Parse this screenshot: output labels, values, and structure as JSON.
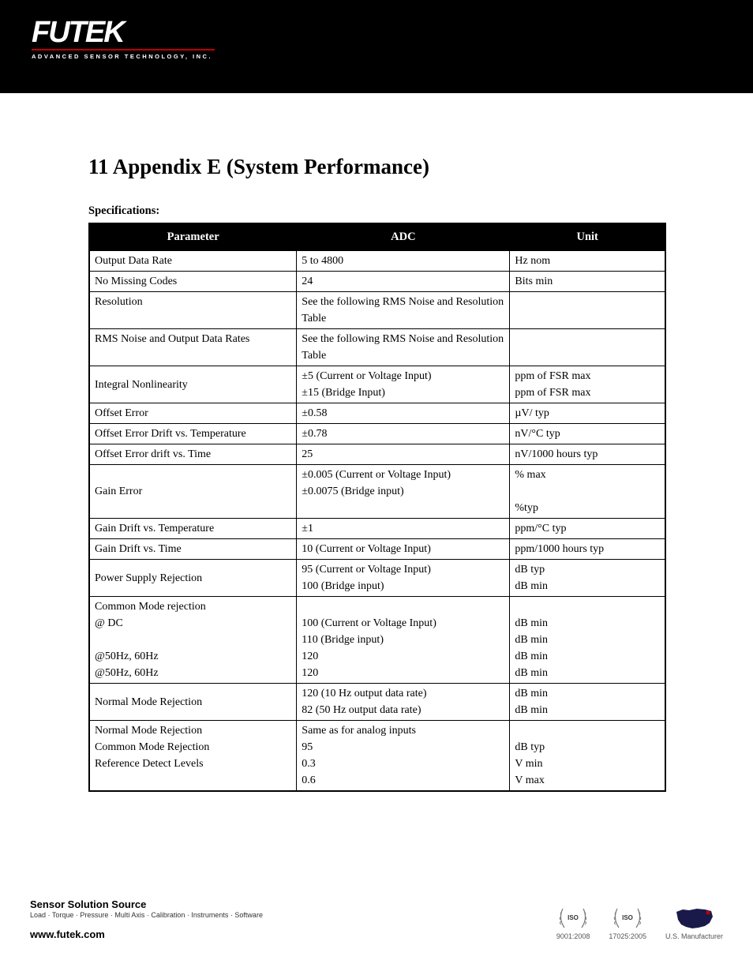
{
  "logo": {
    "main": "FUTEK",
    "sub": "ADVANCED SENSOR TECHNOLOGY, INC."
  },
  "section_number": "11",
  "section_title": "Appendix E (System Performance)",
  "subtitle": "Specifications:",
  "table": {
    "columns": [
      "Parameter",
      "ADC",
      "Unit"
    ],
    "rows": [
      {
        "param": "Output Data Rate",
        "adc": "5 to 4800",
        "unit": "Hz nom"
      },
      {
        "param": "No Missing Codes",
        "adc": "24",
        "unit": "Bits min"
      },
      {
        "param": "Resolution",
        "adc": "See the following RMS Noise and Resolution Table",
        "unit": ""
      },
      {
        "param": "RMS Noise and Output Data Rates",
        "adc": "See the following RMS Noise and Resolution Table",
        "unit": ""
      },
      {
        "param": "Integral Nonlinearity",
        "adc": "±5 (Current or Voltage Input)\n±15 (Bridge Input)",
        "unit": "ppm of FSR max\nppm of FSR max"
      },
      {
        "param": "Offset Error",
        "adc": "±0.58",
        "unit": "µV/ typ"
      },
      {
        "param": "Offset Error Drift vs. Temperature",
        "adc": "±0.78",
        "unit": "nV/°C typ"
      },
      {
        "param": "Offset Error drift vs. Time",
        "adc": "25",
        "unit": "nV/1000 hours typ"
      },
      {
        "param": "Gain Error",
        "adc": "±0.005 (Current or Voltage Input)\n±0.0075 (Bridge input)",
        "unit": "% max\n\n%typ"
      },
      {
        "param": "Gain Drift vs. Temperature",
        "adc": "±1",
        "unit": "ppm/°C typ"
      },
      {
        "param": "Gain Drift vs. Time",
        "adc": "10 (Current or Voltage Input)",
        "unit": "ppm/1000 hours typ"
      },
      {
        "param": "Power Supply Rejection",
        "adc": "95 (Current or Voltage Input)\n100 (Bridge input)",
        "unit": "dB typ\ndB min"
      },
      {
        "param": "Common Mode rejection\n@ DC\n\n@50Hz, 60Hz\n@50Hz, 60Hz",
        "adc": "\n100 (Current or Voltage Input)\n110 (Bridge input)\n120\n120",
        "unit": "\ndB min\ndB min\ndB min\ndB min"
      },
      {
        "param": "Normal Mode Rejection",
        "adc": "120 (10 Hz output data rate)\n82 (50 Hz output data rate)",
        "unit": "dB min\ndB min"
      },
      {
        "param": "Normal Mode Rejection\nCommon Mode Rejection\nReference Detect Levels",
        "adc": "Same as for analog inputs\n95\n0.3\n0.6",
        "unit": "\ndB typ\nV min\nV max"
      }
    ]
  },
  "footer": {
    "source_title": "Sensor Solution Source",
    "categories": "Load · Torque · Pressure · Multi Axis · Calibration · Instruments · Software",
    "url": "www.futek.com",
    "cert1": {
      "label": "ISO",
      "year": "9001:2008"
    },
    "cert2": {
      "label": "ISO",
      "year": "17025:2005"
    },
    "manufacturer": "U.S. Manufacturer"
  },
  "colors": {
    "header_bg": "#000000",
    "accent": "#c00000",
    "text": "#000000",
    "border": "#000000"
  }
}
